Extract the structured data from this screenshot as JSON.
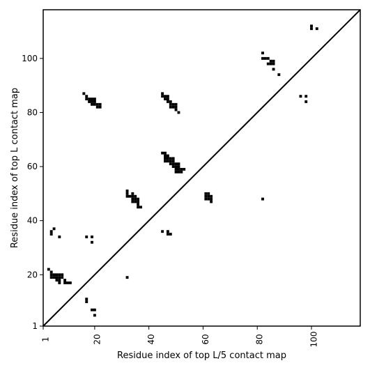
{
  "chart_data": {
    "type": "heatmap",
    "xlabel": "Residue index of top L/5 contact map",
    "ylabel": "Residue index of top L contact map",
    "xlim": [
      1,
      118
    ],
    "ylim": [
      1,
      118
    ],
    "x_ticks": [
      1,
      20,
      40,
      60,
      80,
      100
    ],
    "y_ticks": [
      1,
      20,
      40,
      60,
      80,
      100
    ],
    "diagonal": true,
    "grid": false,
    "legend": "none",
    "cell_color": "#000000",
    "cells_below_diagonal": [
      [
        3,
        22
      ],
      [
        4,
        21
      ],
      [
        4,
        20
      ],
      [
        4,
        19
      ],
      [
        5,
        19
      ],
      [
        5,
        20
      ],
      [
        6,
        19
      ],
      [
        6,
        20
      ],
      [
        7,
        20
      ],
      [
        7,
        19
      ],
      [
        8,
        20
      ],
      [
        8,
        19
      ],
      [
        6,
        18
      ],
      [
        7,
        18
      ],
      [
        7,
        17
      ],
      [
        9,
        18
      ],
      [
        9,
        17
      ],
      [
        10,
        17
      ],
      [
        11,
        17
      ],
      [
        17,
        11
      ],
      [
        17,
        10
      ],
      [
        19,
        7
      ],
      [
        20,
        7
      ],
      [
        20,
        5
      ],
      [
        32,
        19
      ],
      [
        82,
        48
      ]
    ],
    "cells_above_diagonal": [
      [
        4,
        35
      ],
      [
        4,
        36
      ],
      [
        5,
        37
      ],
      [
        7,
        34
      ],
      [
        17,
        34
      ],
      [
        19,
        34
      ],
      [
        19,
        32
      ],
      [
        16,
        87
      ],
      [
        17,
        86
      ],
      [
        17,
        85
      ],
      [
        18,
        85
      ],
      [
        18,
        84
      ],
      [
        19,
        85
      ],
      [
        19,
        84
      ],
      [
        19,
        83
      ],
      [
        20,
        85
      ],
      [
        20,
        84
      ],
      [
        20,
        83
      ],
      [
        21,
        83
      ],
      [
        21,
        82
      ],
      [
        22,
        83
      ],
      [
        22,
        82
      ],
      [
        32,
        51
      ],
      [
        32,
        50
      ],
      [
        32,
        49
      ],
      [
        33,
        49
      ],
      [
        34,
        50
      ],
      [
        34,
        49
      ],
      [
        34,
        48
      ],
      [
        34,
        47
      ],
      [
        35,
        49
      ],
      [
        35,
        48
      ],
      [
        35,
        47
      ],
      [
        36,
        48
      ],
      [
        36,
        47
      ],
      [
        36,
        46
      ],
      [
        36,
        45
      ],
      [
        37,
        45
      ],
      [
        45,
        36
      ],
      [
        47,
        36
      ],
      [
        47,
        35
      ],
      [
        48,
        35
      ],
      [
        45,
        87
      ],
      [
        45,
        86
      ],
      [
        46,
        86
      ],
      [
        46,
        85
      ],
      [
        47,
        86
      ],
      [
        47,
        85
      ],
      [
        47,
        84
      ],
      [
        48,
        84
      ],
      [
        48,
        83
      ],
      [
        48,
        82
      ],
      [
        49,
        83
      ],
      [
        49,
        82
      ],
      [
        50,
        83
      ],
      [
        50,
        82
      ],
      [
        50,
        81
      ],
      [
        51,
        80
      ],
      [
        45,
        65
      ],
      [
        46,
        65
      ],
      [
        46,
        64
      ],
      [
        46,
        63
      ],
      [
        46,
        62
      ],
      [
        47,
        64
      ],
      [
        47,
        63
      ],
      [
        47,
        62
      ],
      [
        48,
        63
      ],
      [
        48,
        62
      ],
      [
        48,
        61
      ],
      [
        49,
        63
      ],
      [
        49,
        62
      ],
      [
        49,
        61
      ],
      [
        49,
        60
      ],
      [
        50,
        61
      ],
      [
        50,
        60
      ],
      [
        50,
        59
      ],
      [
        50,
        58
      ],
      [
        51,
        61
      ],
      [
        51,
        60
      ],
      [
        51,
        59
      ],
      [
        51,
        58
      ],
      [
        52,
        59
      ],
      [
        52,
        58
      ],
      [
        53,
        59
      ],
      [
        61,
        50
      ],
      [
        61,
        49
      ],
      [
        61,
        48
      ],
      [
        62,
        50
      ],
      [
        62,
        49
      ],
      [
        62,
        48
      ],
      [
        63,
        49
      ],
      [
        63,
        48
      ],
      [
        63,
        47
      ],
      [
        82,
        102
      ],
      [
        82,
        100
      ],
      [
        83,
        100
      ],
      [
        84,
        100
      ],
      [
        84,
        98
      ],
      [
        85,
        99
      ],
      [
        85,
        98
      ],
      [
        86,
        99
      ],
      [
        86,
        98
      ],
      [
        86,
        96
      ],
      [
        88,
        94
      ],
      [
        96,
        86
      ],
      [
        98,
        86
      ],
      [
        98,
        84
      ],
      [
        100,
        112
      ],
      [
        100,
        111
      ],
      [
        102,
        111
      ]
    ]
  }
}
